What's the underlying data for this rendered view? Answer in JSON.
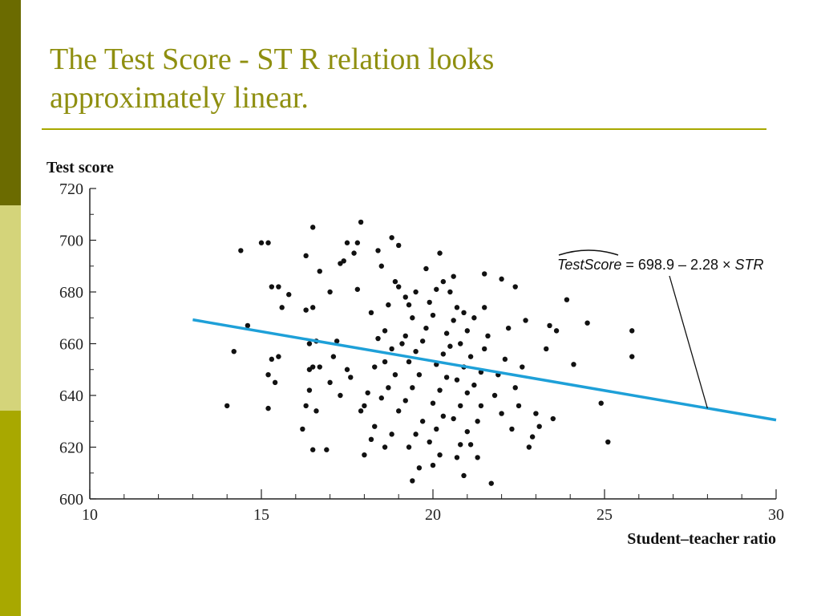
{
  "slide": {
    "title_line1": "The Test Score - ST R relation looks",
    "title_line2": "approximately linear.",
    "colors": {
      "bar_top": "#6b6b00",
      "bar_mid": "#d4d47a",
      "bar_bottom": "#a8a800",
      "title": "#8f8f10",
      "rule": "#a8a800"
    }
  },
  "chart_data": {
    "type": "scatter",
    "title": "",
    "ylabel": "Test score",
    "xlabel": "Student–teacher ratio",
    "xlim": [
      10,
      30
    ],
    "ylim": [
      600,
      720
    ],
    "xticks": [
      10,
      15,
      20,
      25,
      30
    ],
    "yticks": [
      600,
      620,
      640,
      660,
      680,
      700,
      720
    ],
    "grid": false,
    "point_color": "#111111",
    "regression": {
      "intercept": 698.9,
      "slope": -2.28,
      "x_range": [
        13,
        30
      ],
      "color": "#1ea0d8",
      "label_hat": "TestScore",
      "label_rest": " = 698.9 – 2.28 × ",
      "label_var": "STR",
      "label_anchor_point": [
        28,
        635
      ]
    },
    "points": [
      [
        14,
        636
      ],
      [
        14.2,
        657
      ],
      [
        14.6,
        667
      ],
      [
        14.4,
        696
      ],
      [
        15,
        699
      ],
      [
        15.2,
        699
      ],
      [
        15.3,
        682
      ],
      [
        15.5,
        682
      ],
      [
        15.6,
        674
      ],
      [
        15.8,
        679
      ],
      [
        15.2,
        648
      ],
      [
        15.4,
        645
      ],
      [
        15.2,
        635
      ],
      [
        15.5,
        655
      ],
      [
        15.3,
        654
      ],
      [
        16.2,
        627
      ],
      [
        16.3,
        636
      ],
      [
        16.4,
        642
      ],
      [
        16.5,
        619
      ],
      [
        16.6,
        634
      ],
      [
        16.4,
        650
      ],
      [
        16.5,
        651
      ],
      [
        16.7,
        651
      ],
      [
        16.4,
        660
      ],
      [
        16.6,
        661
      ],
      [
        16.3,
        673
      ],
      [
        16.5,
        674
      ],
      [
        16.7,
        688
      ],
      [
        16.3,
        694
      ],
      [
        16.5,
        705
      ],
      [
        16.9,
        619
      ],
      [
        17.0,
        645
      ],
      [
        17.1,
        655
      ],
      [
        17.2,
        661
      ],
      [
        17.0,
        680
      ],
      [
        17.3,
        691
      ],
      [
        17.4,
        692
      ],
      [
        17.5,
        699
      ],
      [
        17.7,
        695
      ],
      [
        17.8,
        699
      ],
      [
        17.9,
        707
      ],
      [
        17.5,
        650
      ],
      [
        17.6,
        647
      ],
      [
        17.3,
        640
      ],
      [
        17.8,
        681
      ],
      [
        18.0,
        617
      ],
      [
        18.2,
        623
      ],
      [
        18.3,
        628
      ],
      [
        17.9,
        634
      ],
      [
        18.0,
        636
      ],
      [
        18.1,
        641
      ],
      [
        18.3,
        651
      ],
      [
        18.4,
        662
      ],
      [
        18.2,
        672
      ],
      [
        18.4,
        696
      ],
      [
        18.5,
        690
      ],
      [
        18.8,
        701
      ],
      [
        19.0,
        698
      ],
      [
        18.6,
        665
      ],
      [
        18.7,
        675
      ],
      [
        18.9,
        684
      ],
      [
        19.0,
        682
      ],
      [
        18.6,
        620
      ],
      [
        18.8,
        625
      ],
      [
        19.0,
        634
      ],
      [
        18.5,
        639
      ],
      [
        18.7,
        643
      ],
      [
        18.9,
        648
      ],
      [
        18.6,
        653
      ],
      [
        18.8,
        658
      ],
      [
        19.1,
        660
      ],
      [
        19.2,
        663
      ],
      [
        19.4,
        670
      ],
      [
        19.3,
        675
      ],
      [
        19.5,
        680
      ],
      [
        19.2,
        678
      ],
      [
        19.4,
        607
      ],
      [
        19.6,
        612
      ],
      [
        19.3,
        620
      ],
      [
        19.5,
        625
      ],
      [
        19.7,
        630
      ],
      [
        19.2,
        638
      ],
      [
        19.4,
        643
      ],
      [
        19.6,
        648
      ],
      [
        19.3,
        653
      ],
      [
        19.5,
        657
      ],
      [
        19.7,
        661
      ],
      [
        19.8,
        666
      ],
      [
        20.0,
        671
      ],
      [
        19.9,
        676
      ],
      [
        20.1,
        681
      ],
      [
        20.3,
        684
      ],
      [
        20.6,
        686
      ],
      [
        20.2,
        695
      ],
      [
        19.8,
        689
      ],
      [
        20.0,
        613
      ],
      [
        20.2,
        617
      ],
      [
        19.9,
        622
      ],
      [
        20.1,
        627
      ],
      [
        20.3,
        632
      ],
      [
        20.0,
        637
      ],
      [
        20.2,
        642
      ],
      [
        20.4,
        647
      ],
      [
        20.1,
        652
      ],
      [
        20.3,
        656
      ],
      [
        20.5,
        659
      ],
      [
        20.4,
        664
      ],
      [
        20.6,
        669
      ],
      [
        20.7,
        674
      ],
      [
        20.9,
        672
      ],
      [
        20.5,
        680
      ],
      [
        20.7,
        616
      ],
      [
        20.8,
        621
      ],
      [
        21.0,
        626
      ],
      [
        20.6,
        631
      ],
      [
        20.8,
        636
      ],
      [
        21.0,
        641
      ],
      [
        20.7,
        646
      ],
      [
        20.9,
        651
      ],
      [
        21.1,
        655
      ],
      [
        20.8,
        660
      ],
      [
        21.0,
        665
      ],
      [
        21.2,
        670
      ],
      [
        20.9,
        609
      ],
      [
        21.3,
        616
      ],
      [
        21.1,
        621
      ],
      [
        21.3,
        630
      ],
      [
        21.4,
        636
      ],
      [
        21.2,
        644
      ],
      [
        21.4,
        649
      ],
      [
        21.5,
        658
      ],
      [
        21.6,
        663
      ],
      [
        21.5,
        674
      ],
      [
        21.5,
        687
      ],
      [
        21.7,
        606
      ],
      [
        21.8,
        640
      ],
      [
        21.9,
        648
      ],
      [
        22.0,
        633
      ],
      [
        22.1,
        654
      ],
      [
        22.2,
        666
      ],
      [
        22.0,
        685
      ],
      [
        22.4,
        682
      ],
      [
        22.3,
        627
      ],
      [
        22.5,
        636
      ],
      [
        22.6,
        651
      ],
      [
        22.7,
        669
      ],
      [
        22.4,
        643
      ],
      [
        22.8,
        620
      ],
      [
        22.9,
        624
      ],
      [
        23.0,
        633
      ],
      [
        23.1,
        628
      ],
      [
        23.3,
        658
      ],
      [
        23.4,
        667
      ],
      [
        23.6,
        665
      ],
      [
        23.5,
        631
      ],
      [
        23.9,
        677
      ],
      [
        24.1,
        652
      ],
      [
        24.5,
        668
      ],
      [
        24.9,
        637
      ],
      [
        25.1,
        622
      ],
      [
        25.8,
        665
      ],
      [
        25.8,
        655
      ]
    ]
  }
}
